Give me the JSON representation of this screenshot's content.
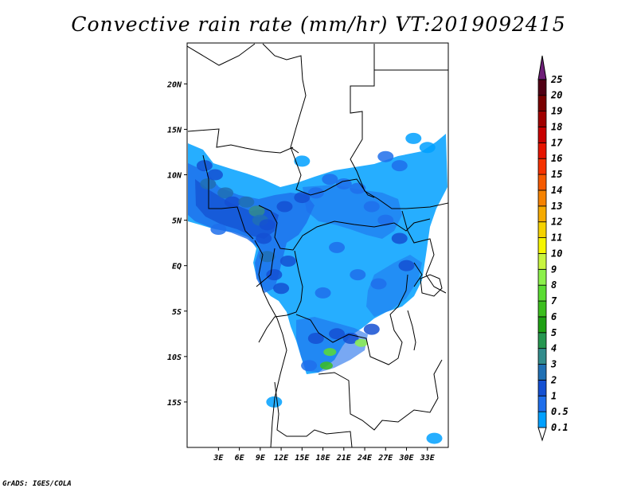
{
  "title": "Convective rain rate (mm/hr) VT:2019092415",
  "credit": "GrADS: IGES/COLA",
  "map": {
    "lon_range": [
      -1.5,
      36
    ],
    "lat_range": [
      -20,
      24.5
    ],
    "lon_ticks": [
      {
        "value": 3,
        "label": "3E"
      },
      {
        "value": 6,
        "label": "6E"
      },
      {
        "value": 9,
        "label": "9E"
      },
      {
        "value": 12,
        "label": "12E"
      },
      {
        "value": 15,
        "label": "15E"
      },
      {
        "value": 18,
        "label": "18E"
      },
      {
        "value": 21,
        "label": "21E"
      },
      {
        "value": 24,
        "label": "24E"
      },
      {
        "value": 27,
        "label": "27E"
      },
      {
        "value": 30,
        "label": "30E"
      },
      {
        "value": 33,
        "label": "33E"
      }
    ],
    "lat_ticks": [
      {
        "value": 20,
        "label": "20N"
      },
      {
        "value": 15,
        "label": "15N"
      },
      {
        "value": 10,
        "label": "10N"
      },
      {
        "value": 5,
        "label": "5N"
      },
      {
        "value": 0,
        "label": "EQ"
      },
      {
        "value": -5,
        "label": "5S"
      },
      {
        "value": -10,
        "label": "10S"
      },
      {
        "value": -15,
        "label": "15S"
      }
    ]
  },
  "colorbar": {
    "labels": [
      "0.1",
      "0.5",
      "1",
      "2",
      "3",
      "4",
      "5",
      "6",
      "7",
      "8",
      "9",
      "10",
      "11",
      "12",
      "13",
      "14",
      "15",
      "16",
      "17",
      "18",
      "19",
      "20",
      "25"
    ],
    "colors": [
      "#00a0ff",
      "#1e6eeb",
      "#1450d2",
      "#2070b4",
      "#328c8c",
      "#259650",
      "#1ea014",
      "#3cbe1e",
      "#5adc32",
      "#8cf04b",
      "#c8f540",
      "#f5f500",
      "#f5d200",
      "#f5aa00",
      "#f58200",
      "#f55a00",
      "#f53200",
      "#e61400",
      "#c80000",
      "#a00000",
      "#780000",
      "#500014",
      "#6e1e78"
    ]
  },
  "rain_cells": [
    {
      "lon": 1,
      "lat": 11,
      "v": 1
    },
    {
      "lon": 1.5,
      "lat": 9,
      "v": 2
    },
    {
      "lon": 2.5,
      "lat": 10,
      "v": 1
    },
    {
      "lon": 4,
      "lat": 8,
      "v": 2
    },
    {
      "lon": 5,
      "lat": 7,
      "v": 1
    },
    {
      "lon": 7,
      "lat": 7,
      "v": 2
    },
    {
      "lon": 8.5,
      "lat": 6,
      "v": 3
    },
    {
      "lon": 9,
      "lat": 5,
      "v": 2
    },
    {
      "lon": 10,
      "lat": 4.5,
      "v": 1
    },
    {
      "lon": 9.5,
      "lat": 3,
      "v": 1
    },
    {
      "lon": 10,
      "lat": 1,
      "v": 2
    },
    {
      "lon": 11,
      "lat": -1,
      "v": 1
    },
    {
      "lon": 12,
      "lat": -2.5,
      "v": 1
    },
    {
      "lon": 13,
      "lat": 0.5,
      "v": 1
    },
    {
      "lon": 12.5,
      "lat": 6.5,
      "v": 1
    },
    {
      "lon": 15,
      "lat": 7.5,
      "v": 1
    },
    {
      "lon": 17,
      "lat": 8,
      "v": 0.5
    },
    {
      "lon": 19,
      "lat": 9.5,
      "v": 0.5
    },
    {
      "lon": 21,
      "lat": 9,
      "v": 0.5
    },
    {
      "lon": 23,
      "lat": 8.5,
      "v": 0.5
    },
    {
      "lon": 25,
      "lat": 6.5,
      "v": 0.5
    },
    {
      "lon": 27,
      "lat": 5,
      "v": 0.5
    },
    {
      "lon": 29,
      "lat": 3,
      "v": 1
    },
    {
      "lon": 30,
      "lat": 0,
      "v": 1
    },
    {
      "lon": 26,
      "lat": -2,
      "v": 0.5
    },
    {
      "lon": 23,
      "lat": -1,
      "v": 0.5
    },
    {
      "lon": 20,
      "lat": 2,
      "v": 0.5
    },
    {
      "lon": 18,
      "lat": -3,
      "v": 0.5
    },
    {
      "lon": 17,
      "lat": -8,
      "v": 1
    },
    {
      "lon": 19,
      "lat": -9.5,
      "v": 7
    },
    {
      "lon": 20,
      "lat": -7.5,
      "v": 1
    },
    {
      "lon": 22,
      "lat": -8,
      "v": 1
    },
    {
      "lon": 23.5,
      "lat": -8.5,
      "v": 8
    },
    {
      "lon": 25,
      "lat": -7,
      "v": 1
    },
    {
      "lon": 18.5,
      "lat": -11,
      "v": 6
    },
    {
      "lon": 16,
      "lat": -11,
      "v": 0.5
    },
    {
      "lon": 27,
      "lat": 12,
      "v": 0.5
    },
    {
      "lon": 29,
      "lat": 11,
      "v": 0.5
    },
    {
      "lon": 31,
      "lat": 14,
      "v": 0.1
    },
    {
      "lon": 33,
      "lat": 13,
      "v": 0.1
    },
    {
      "lon": 11,
      "lat": -15,
      "v": 0.1
    },
    {
      "lon": 34,
      "lat": -19,
      "v": 0.1
    },
    {
      "lon": 15,
      "lat": 11.5,
      "v": 0.1
    },
    {
      "lon": 3,
      "lat": 4,
      "v": 0.5
    }
  ]
}
